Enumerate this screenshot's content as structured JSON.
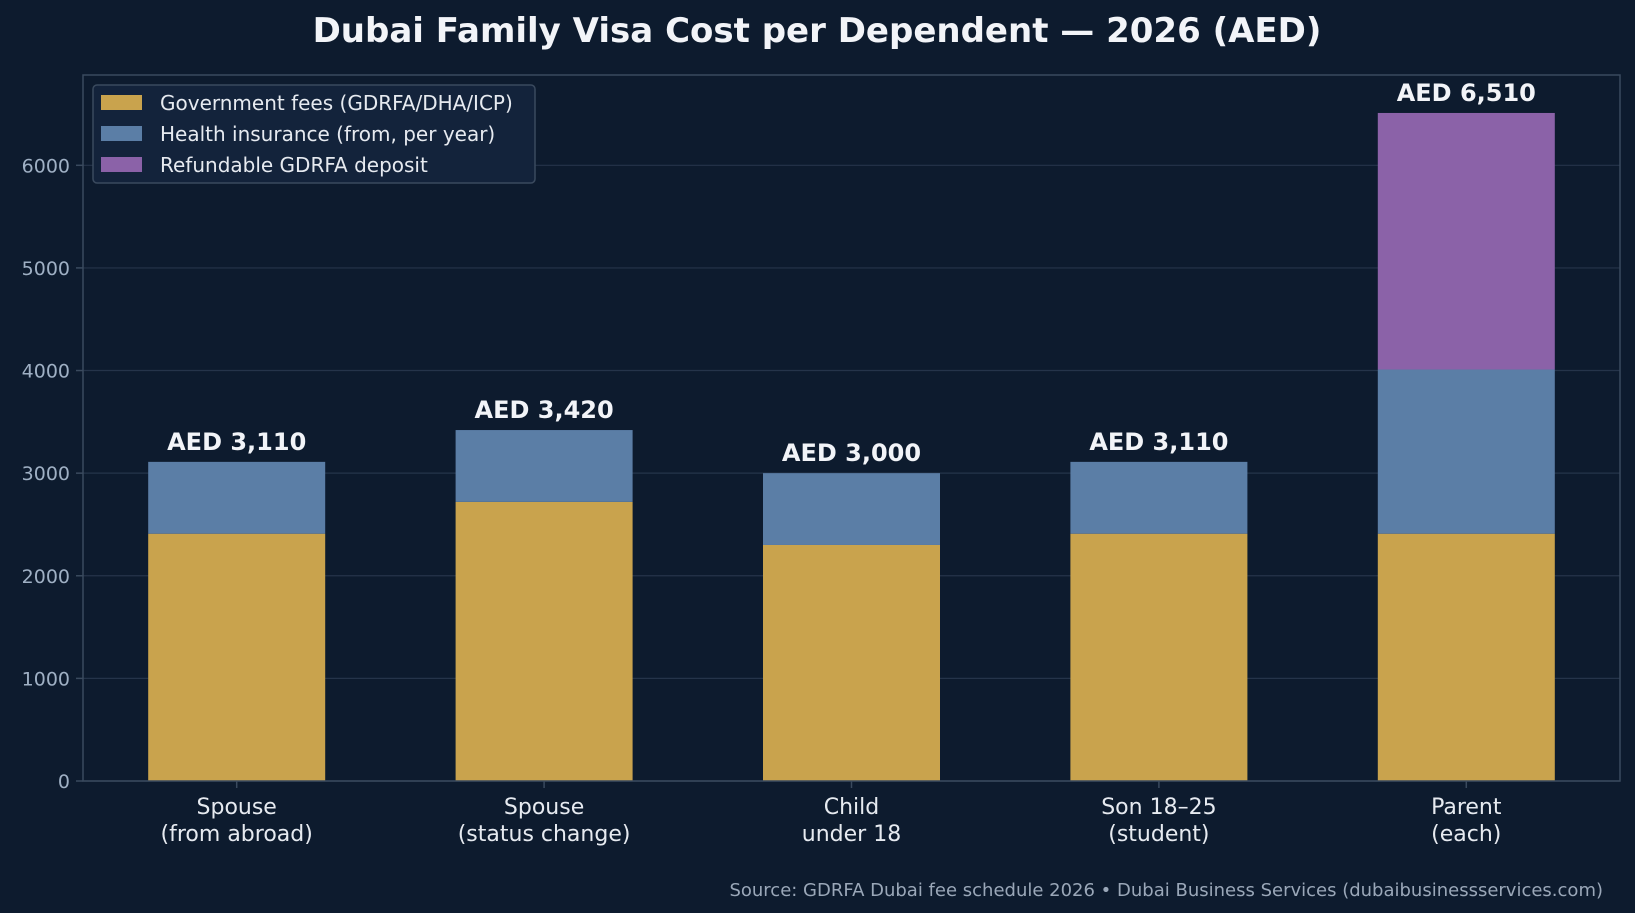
{
  "colors": {
    "background": "#0d1b2e",
    "plot_border": "#3a4a5e",
    "grid": "#25344a",
    "government": "#c9a34d",
    "insurance": "#5b7ea6",
    "deposit": "#8b62a8",
    "legend_bg": "#13233b",
    "legend_border": "#3a4a5e"
  },
  "chart_data": {
    "type": "bar",
    "stacked": true,
    "title": "Dubai Family Visa Cost per Dependent — 2026 (AED)",
    "categories": [
      [
        "Spouse",
        "(from abroad)"
      ],
      [
        "Spouse",
        "(status change)"
      ],
      [
        "Child",
        "under 18"
      ],
      [
        "Son 18–25",
        "(student)"
      ],
      [
        "Parent",
        "(each)"
      ]
    ],
    "series": [
      {
        "name": "Government fees (GDRFA/DHA/ICP)",
        "color_key": "government",
        "values": [
          2410,
          2720,
          2300,
          2410,
          2410
        ]
      },
      {
        "name": "Health insurance (from, per year)",
        "color_key": "insurance",
        "values": [
          700,
          700,
          700,
          700,
          1600
        ]
      },
      {
        "name": "Refundable GDRFA deposit",
        "color_key": "deposit",
        "values": [
          0,
          0,
          0,
          0,
          2500
        ]
      }
    ],
    "totals": [
      "AED 3,110",
      "AED 3,420",
      "AED 3,000",
      "AED 3,110",
      "AED 6,510"
    ],
    "ylim": [
      0,
      6880
    ],
    "yticks": [
      0,
      1000,
      2000,
      3000,
      4000,
      5000,
      6000
    ],
    "grid": true,
    "legend_position": "top-left",
    "xlabel": "",
    "ylabel": ""
  },
  "source": "Source: GDRFA Dubai fee schedule 2026 • Dubai Business Services (dubaibusinessservices.com)"
}
